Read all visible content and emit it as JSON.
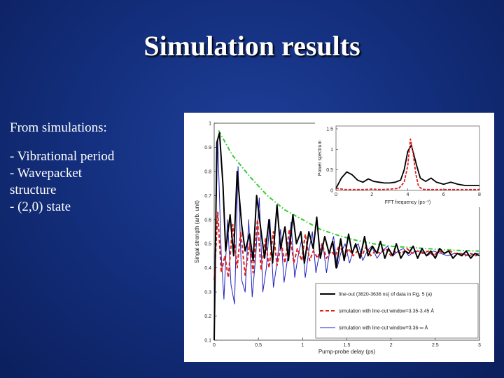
{
  "slide": {
    "title": "Simulation results",
    "intro": "From simulations:",
    "bullets": [
      "- Vibrational period",
      "- Wavepacket",
      "structure",
      "- (2,0) state"
    ]
  },
  "colors": {
    "background": "#14307f",
    "title": "#ffffff",
    "lineout": "#000000",
    "sim1": "#e02020",
    "sim2": "#2020c0",
    "envelope": "#33cc33"
  },
  "chart_data": [
    {
      "type": "line",
      "xlabel": "Pump-probe delay (ps)",
      "ylabel": "Singal strength (arb. unit)",
      "xlim": [
        0,
        3
      ],
      "ylim": [
        0.1,
        1.0
      ],
      "xticks": [
        "0",
        "0.5",
        "1",
        "1.5",
        "2",
        "2.5",
        "3"
      ],
      "yticks": [
        "1",
        "0.9",
        "0.8",
        "0.7",
        "0.6",
        "0.5",
        "0.4",
        "0.3",
        "0.2",
        "0.1"
      ],
      "legend": [
        "line-out (3620-3636 ns) of data in Fig. 5 (a)",
        "simulation with line-cut window=3.35-3.45 Å",
        "simulation with line-cut window=3.36-∞ Å"
      ],
      "legend_position": "bottom-right",
      "series": [
        {
          "name": "line-out (3620-3636 ns) of data in Fig. 5 (a)",
          "style": "solid",
          "x": [
            0,
            0.03,
            0.06,
            0.1,
            0.13,
            0.18,
            0.22,
            0.26,
            0.31,
            0.35,
            0.4,
            0.44,
            0.48,
            0.53,
            0.57,
            0.62,
            0.66,
            0.71,
            0.75,
            0.8,
            0.84,
            0.89,
            0.93,
            0.98,
            1.02,
            1.07,
            1.12,
            1.16,
            1.2,
            1.25,
            1.3,
            1.34,
            1.38,
            1.43,
            1.47,
            1.52,
            1.56,
            1.6,
            1.65,
            1.7,
            1.74,
            1.79,
            1.84,
            1.88,
            1.93,
            1.97,
            2.02,
            2.06,
            2.11,
            2.16,
            2.2,
            2.25,
            2.3,
            2.35,
            2.4,
            2.45,
            2.5,
            2.55,
            2.6,
            2.65,
            2.7,
            2.75,
            2.8,
            2.85,
            2.9,
            2.95,
            3.0
          ],
          "y": [
            0.1,
            0.92,
            0.96,
            0.74,
            0.47,
            0.62,
            0.45,
            0.8,
            0.58,
            0.47,
            0.54,
            0.43,
            0.7,
            0.55,
            0.44,
            0.6,
            0.42,
            0.66,
            0.48,
            0.57,
            0.43,
            0.62,
            0.5,
            0.55,
            0.42,
            0.55,
            0.48,
            0.61,
            0.44,
            0.53,
            0.46,
            0.51,
            0.4,
            0.52,
            0.43,
            0.54,
            0.46,
            0.5,
            0.44,
            0.53,
            0.45,
            0.49,
            0.46,
            0.51,
            0.44,
            0.48,
            0.45,
            0.5,
            0.44,
            0.47,
            0.46,
            0.49,
            0.44,
            0.48,
            0.45,
            0.47,
            0.44,
            0.48,
            0.46,
            0.47,
            0.44,
            0.46,
            0.45,
            0.47,
            0.44,
            0.46,
            0.45
          ]
        },
        {
          "name": "simulation with line-cut window=3.35-3.45 Å",
          "style": "dashed",
          "x": [
            0,
            0.04,
            0.08,
            0.12,
            0.16,
            0.21,
            0.26,
            0.3,
            0.35,
            0.4,
            0.44,
            0.49,
            0.53,
            0.58,
            0.62,
            0.67,
            0.71,
            0.76,
            0.8,
            0.85,
            0.9,
            0.94,
            0.99,
            1.03,
            1.08,
            1.12,
            1.17,
            1.22,
            1.27,
            1.32,
            1.37,
            1.42,
            1.47,
            1.52,
            1.57,
            1.62,
            1.67,
            1.72,
            1.77,
            1.82,
            1.88,
            1.94,
            2.0,
            2.06,
            2.12,
            2.18,
            2.24,
            2.3,
            2.36,
            2.42,
            2.48,
            2.54,
            2.6,
            2.66,
            2.72,
            2.78,
            2.84,
            2.9,
            2.96,
            3.0
          ],
          "y": [
            0.35,
            0.63,
            0.38,
            0.45,
            0.36,
            0.58,
            0.4,
            0.55,
            0.37,
            0.5,
            0.38,
            0.6,
            0.39,
            0.52,
            0.4,
            0.55,
            0.41,
            0.5,
            0.42,
            0.56,
            0.42,
            0.48,
            0.43,
            0.54,
            0.43,
            0.47,
            0.44,
            0.5,
            0.44,
            0.47,
            0.45,
            0.5,
            0.44,
            0.48,
            0.45,
            0.47,
            0.45,
            0.49,
            0.45,
            0.47,
            0.46,
            0.48,
            0.45,
            0.47,
            0.46,
            0.48,
            0.46,
            0.47,
            0.46,
            0.47,
            0.45,
            0.47,
            0.46,
            0.47,
            0.46,
            0.46,
            0.45,
            0.46,
            0.45,
            0.46
          ]
        },
        {
          "name": "simulation with line-cut window=3.36-∞ Å",
          "style": "solid",
          "x": [
            0,
            0.04,
            0.08,
            0.11,
            0.15,
            0.19,
            0.23,
            0.27,
            0.31,
            0.35,
            0.39,
            0.43,
            0.47,
            0.51,
            0.55,
            0.59,
            0.63,
            0.67,
            0.71,
            0.75,
            0.79,
            0.83,
            0.87,
            0.91,
            0.95,
            0.99,
            1.03,
            1.07,
            1.11,
            1.15,
            1.19,
            1.23,
            1.27,
            1.31,
            1.35,
            1.39,
            1.43,
            1.48,
            1.53,
            1.58,
            1.63,
            1.68,
            1.73,
            1.78,
            1.84,
            1.9,
            1.96,
            2.02,
            2.08,
            2.14,
            2.2,
            2.27,
            2.34,
            2.41,
            2.48,
            2.56,
            2.64,
            2.72,
            2.8,
            2.88,
            2.96,
            3.0
          ],
          "y": [
            0.3,
            0.93,
            0.45,
            0.27,
            0.6,
            0.33,
            0.25,
            0.82,
            0.35,
            0.3,
            0.6,
            0.28,
            0.45,
            0.69,
            0.3,
            0.4,
            0.6,
            0.32,
            0.42,
            0.56,
            0.34,
            0.44,
            0.59,
            0.36,
            0.45,
            0.52,
            0.36,
            0.47,
            0.55,
            0.38,
            0.46,
            0.5,
            0.38,
            0.48,
            0.53,
            0.4,
            0.46,
            0.5,
            0.42,
            0.48,
            0.5,
            0.43,
            0.47,
            0.49,
            0.44,
            0.47,
            0.49,
            0.45,
            0.47,
            0.48,
            0.45,
            0.47,
            0.47,
            0.45,
            0.47,
            0.46,
            0.45,
            0.46,
            0.46,
            0.45,
            0.46,
            0.46
          ]
        },
        {
          "name": "",
          "style": "dash-dot",
          "x": [
            0.05,
            0.2,
            0.4,
            0.6,
            0.8,
            1.0,
            1.2,
            1.4,
            1.6,
            1.8,
            2.0,
            2.2,
            2.4,
            2.6,
            2.8,
            3.0
          ],
          "y": [
            0.97,
            0.87,
            0.78,
            0.7,
            0.64,
            0.6,
            0.56,
            0.535,
            0.515,
            0.5,
            0.49,
            0.485,
            0.48,
            0.475,
            0.472,
            0.47
          ]
        }
      ]
    },
    {
      "type": "line",
      "xlabel": "FFT frequency (ps⁻¹)",
      "ylabel": "Power spectrum",
      "xlim": [
        0,
        8
      ],
      "ylim": [
        0,
        1.5
      ],
      "xticks": [
        "0",
        "2",
        "4",
        "6",
        "8"
      ],
      "yticks": [
        "1.5",
        "1",
        "0.5",
        "0"
      ],
      "series": [
        {
          "name": "",
          "style": "solid",
          "x": [
            0,
            0.3,
            0.6,
            0.9,
            1.2,
            1.5,
            1.8,
            2.1,
            2.4,
            2.7,
            3.0,
            3.3,
            3.6,
            3.8,
            4.0,
            4.2,
            4.35,
            4.5,
            4.7,
            5.0,
            5.3,
            5.6,
            6.0,
            6.4,
            6.8,
            7.2,
            7.6,
            8.0
          ],
          "y": [
            0.05,
            0.3,
            0.45,
            0.38,
            0.25,
            0.2,
            0.28,
            0.22,
            0.2,
            0.18,
            0.18,
            0.2,
            0.25,
            0.5,
            0.95,
            1.1,
            0.85,
            0.6,
            0.3,
            0.22,
            0.3,
            0.2,
            0.15,
            0.2,
            0.15,
            0.12,
            0.12,
            0.12
          ]
        },
        {
          "name": "",
          "style": "dashed",
          "x": [
            0,
            0.5,
            1.0,
            1.5,
            2.0,
            2.5,
            3.0,
            3.5,
            3.8,
            4.0,
            4.15,
            4.3,
            4.45,
            4.6,
            4.8,
            5.0,
            5.5,
            6.0,
            6.5,
            7.0,
            7.5,
            8.0
          ],
          "y": [
            0.05,
            0.02,
            0.02,
            0.02,
            0.03,
            0.02,
            0.03,
            0.05,
            0.2,
            0.6,
            1.25,
            0.9,
            0.4,
            0.1,
            0.03,
            0.02,
            0.02,
            0.02,
            0.02,
            0.02,
            0.02,
            0.02
          ]
        }
      ]
    }
  ]
}
